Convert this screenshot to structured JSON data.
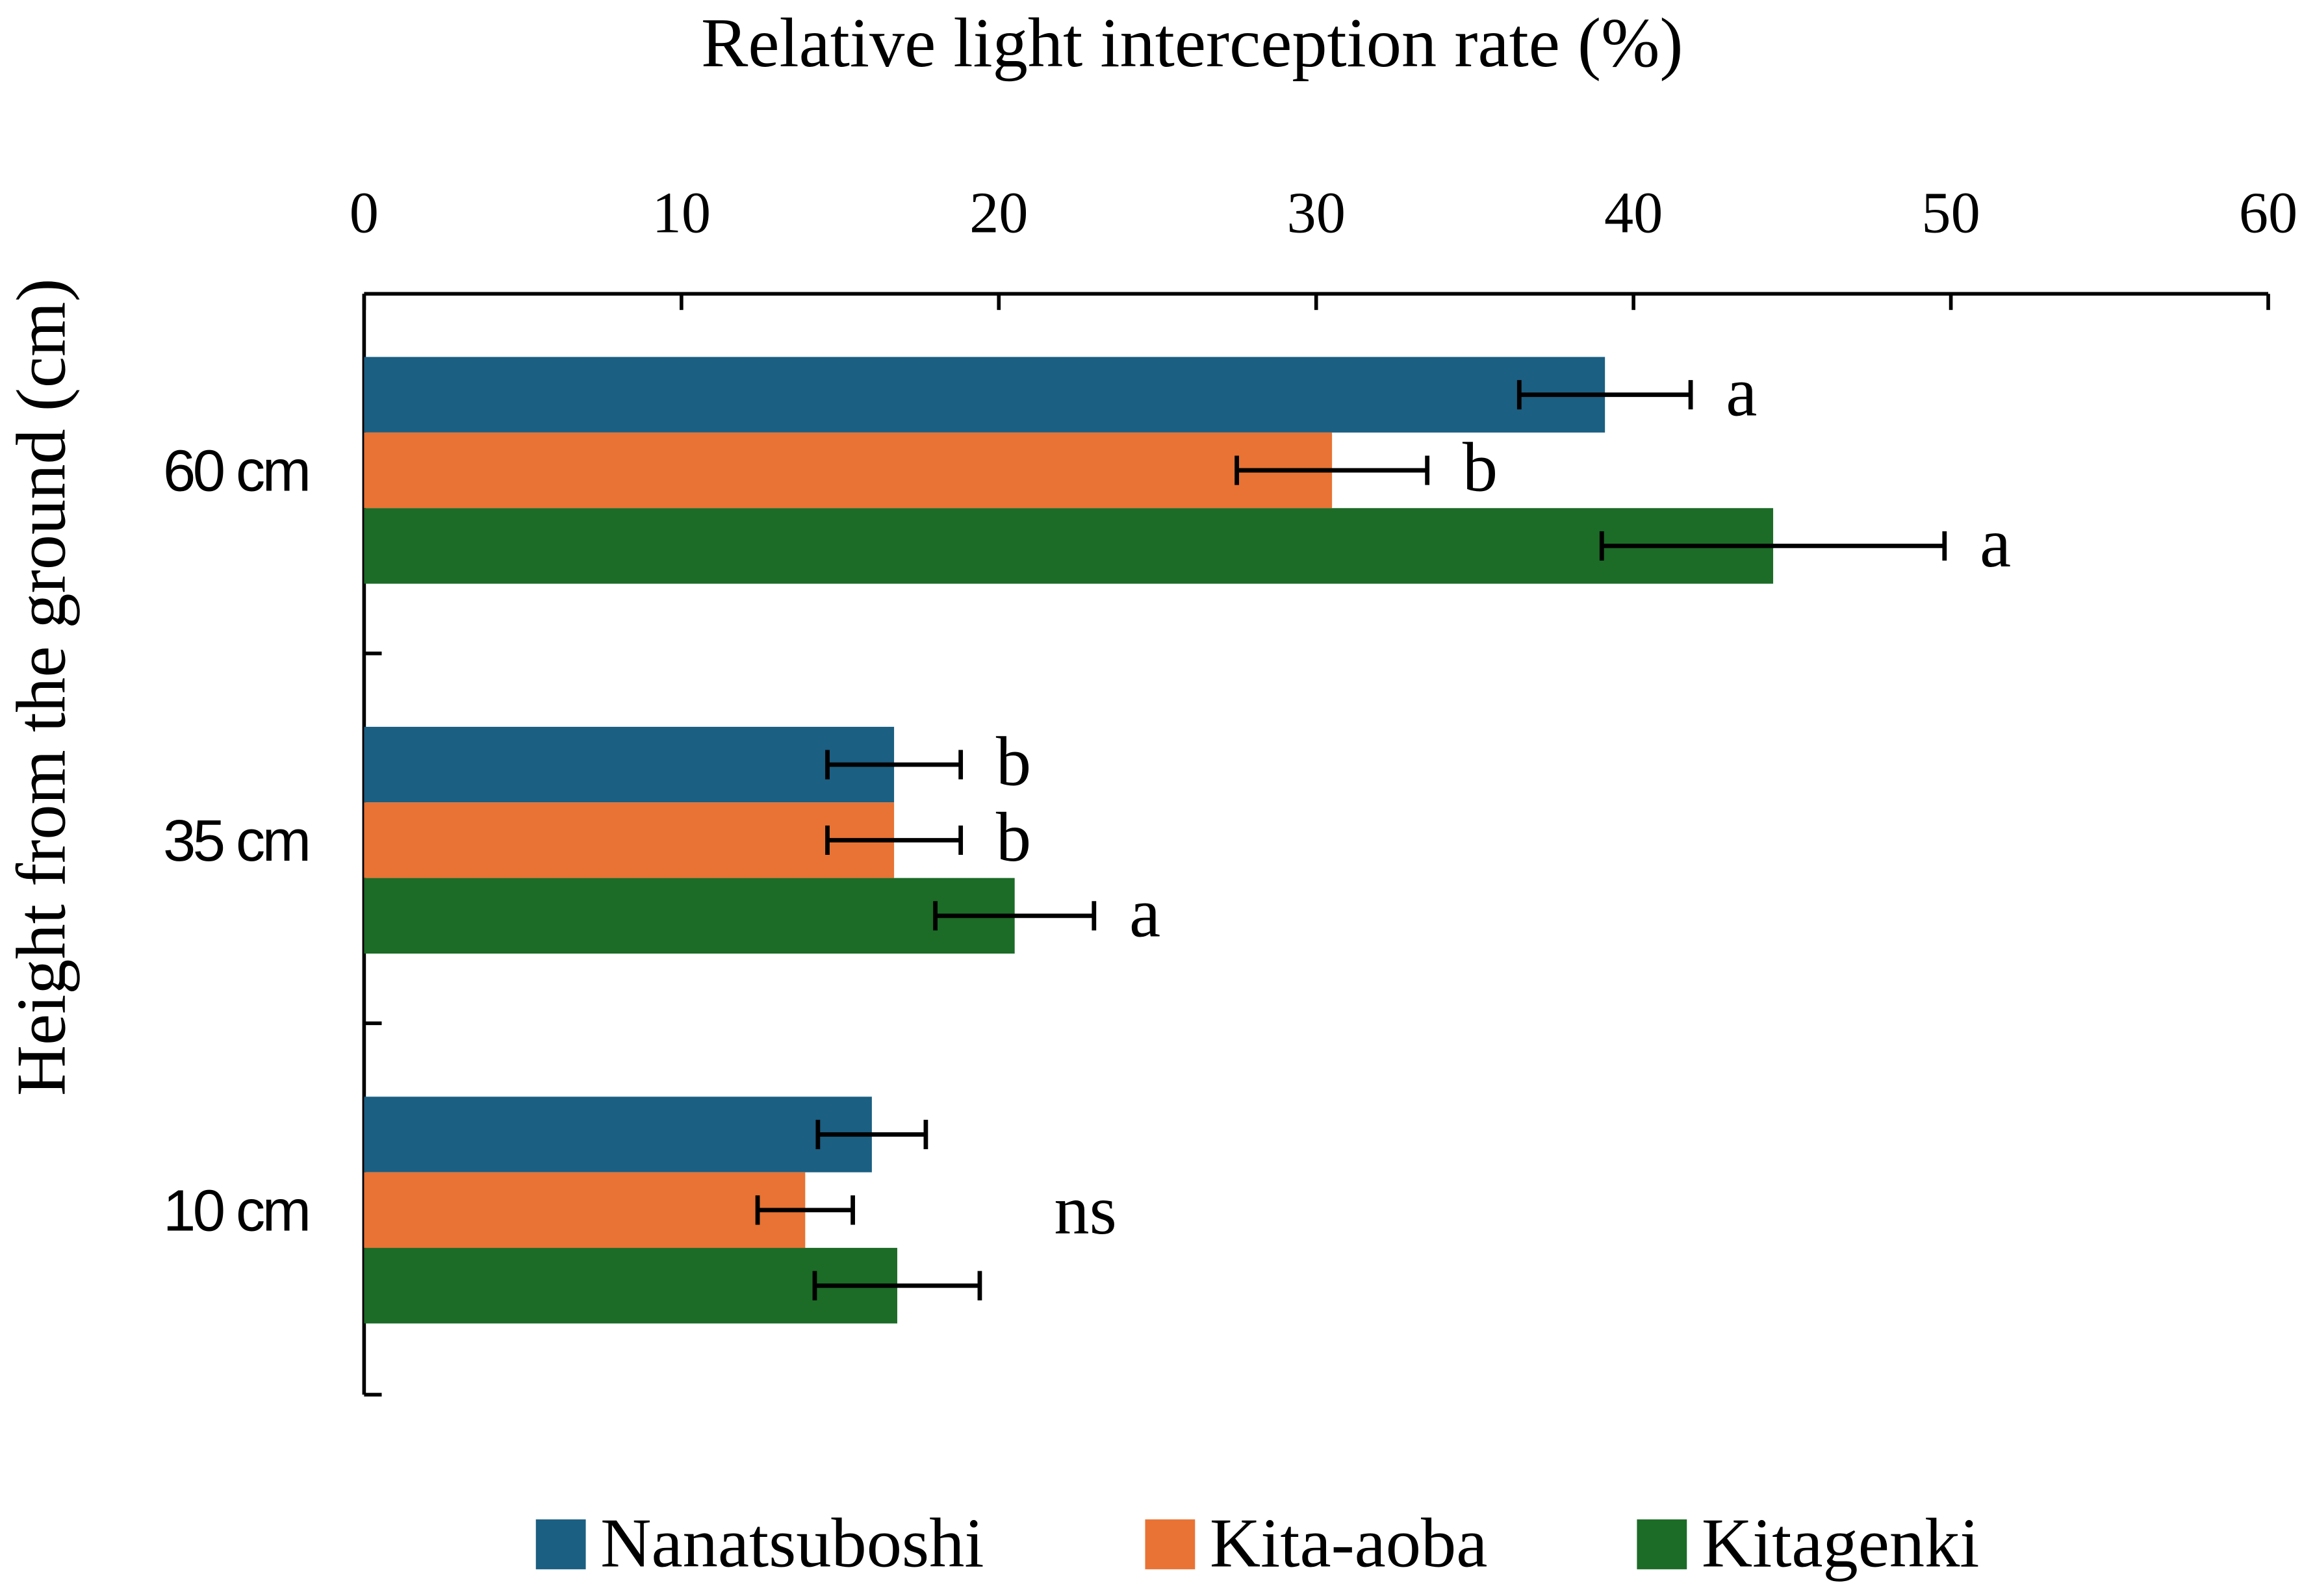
{
  "chart_data": {
    "type": "bar",
    "orientation": "horizontal",
    "title": "Relative light interception rate (%)",
    "xlabel": "Relative light interception rate (%)",
    "ylabel": "Height from the ground (cm)",
    "xlim": [
      0,
      60
    ],
    "xticks": [
      0,
      10,
      20,
      30,
      40,
      50,
      60
    ],
    "categories": [
      "60 cm",
      "35 cm",
      "10 cm"
    ],
    "series": [
      {
        "name": "Nanatsuboshi",
        "color": "#1b5f82",
        "values": [
          39.1,
          16.7,
          16.0
        ],
        "errors": [
          2.7,
          2.1,
          1.7
        ]
      },
      {
        "name": "Kita-aoba",
        "color": "#e87334",
        "values": [
          30.5,
          16.7,
          13.9
        ],
        "errors": [
          3.0,
          2.1,
          1.5
        ]
      },
      {
        "name": "Kitagenki",
        "color": "#1c6b27",
        "values": [
          44.4,
          20.5,
          16.8
        ],
        "errors": [
          5.4,
          2.5,
          2.6
        ]
      }
    ],
    "significance": [
      [
        "a",
        "b",
        "a"
      ],
      [
        "b",
        "b",
        "a"
      ],
      [
        "",
        "",
        ""
      ]
    ],
    "group_annotations": [
      "",
      "",
      "ns"
    ],
    "legend_position": "bottom",
    "grid": false
  }
}
